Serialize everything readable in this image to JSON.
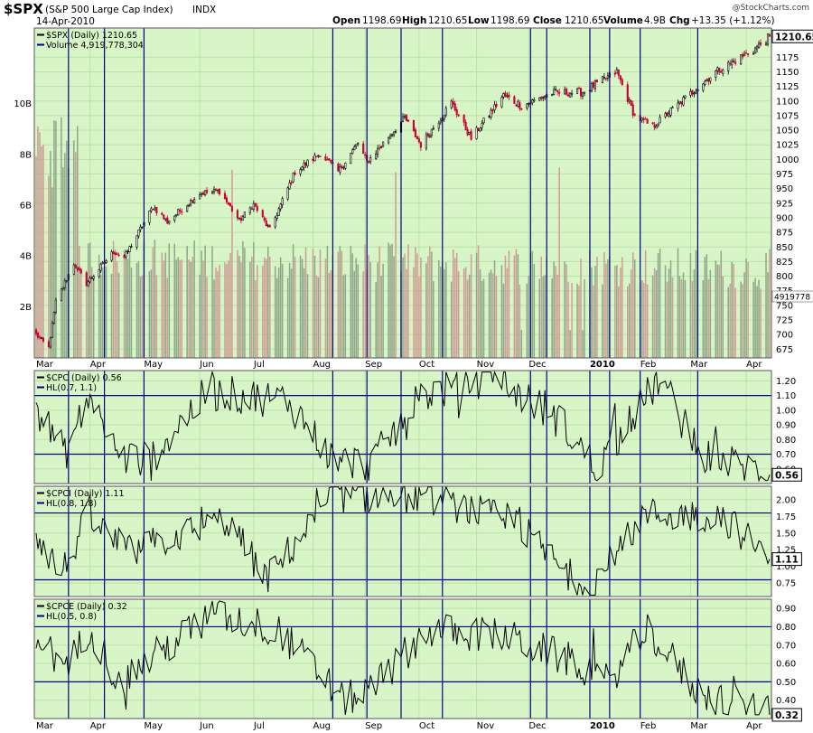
{
  "header": {
    "symbol": "$SPX",
    "description": "(S&P 500 Large Cap Index)",
    "exchange": "INDX",
    "date": "14-Apr-2010",
    "watermark": "@StockCharts.com",
    "quote": {
      "open_label": "Open",
      "open": "1198.69",
      "high_label": "High",
      "high": "1210.65",
      "low_label": "Low",
      "low": "1198.69",
      "close_label": "Close",
      "close": "1210.65",
      "volume_label": "Volume",
      "volume": "4.9B",
      "chg_label": "Chg",
      "chg": "+13.35 (+1.12%)"
    }
  },
  "colors": {
    "panel_bg": "#d8f5c8",
    "grid": "#b9e3a5",
    "vline": "#00008b",
    "candle_up": "#000000",
    "candle_down": "#cc0033",
    "vol_up": "#8fa889",
    "vol_down": "#cf9e96",
    "line": "#000000",
    "hline": "#00008b"
  },
  "chart_data": [
    {
      "type": "candlestick",
      "name": "$SPX (Daily) 1210.65",
      "legend": [
        "$SPX (Daily) 1210.65",
        "Volume 4,919,778,304"
      ],
      "last_value_label": "1210.65",
      "volume_last_label": "4919778",
      "x_months": [
        "Mar",
        "Apr",
        "May",
        "Jun",
        "Jul",
        "Aug",
        "Sep",
        "Oct",
        "Nov",
        "Dec",
        "2010",
        "Feb",
        "Mar",
        "Apr"
      ],
      "y_ticks": [
        675,
        700,
        725,
        750,
        775,
        800,
        825,
        850,
        875,
        900,
        925,
        950,
        975,
        1000,
        1025,
        1050,
        1075,
        1100,
        1125,
        1150,
        1175
      ],
      "ylim": [
        660,
        1225
      ],
      "volume_ticks": [
        "2B",
        "4B",
        "6B",
        "8B",
        "10B"
      ],
      "volume_ylim": [
        0,
        13
      ],
      "close_keypoints": [
        {
          "x": "2009-03-02",
          "y": 700
        },
        {
          "x": "2009-03-09",
          "y": 677
        },
        {
          "x": "2009-03-13",
          "y": 756
        },
        {
          "x": "2009-03-23",
          "y": 822
        },
        {
          "x": "2009-03-30",
          "y": 787
        },
        {
          "x": "2009-04-14",
          "y": 842
        },
        {
          "x": "2009-04-20",
          "y": 832
        },
        {
          "x": "2009-05-06",
          "y": 919
        },
        {
          "x": "2009-05-14",
          "y": 893
        },
        {
          "x": "2009-06-01",
          "y": 942
        },
        {
          "x": "2009-06-12",
          "y": 946
        },
        {
          "x": "2009-06-23",
          "y": 895
        },
        {
          "x": "2009-07-01",
          "y": 923
        },
        {
          "x": "2009-07-10",
          "y": 879
        },
        {
          "x": "2009-07-24",
          "y": 979
        },
        {
          "x": "2009-08-07",
          "y": 1010
        },
        {
          "x": "2009-08-17",
          "y": 979
        },
        {
          "x": "2009-08-28",
          "y": 1028
        },
        {
          "x": "2009-09-02",
          "y": 995
        },
        {
          "x": "2009-09-23",
          "y": 1071
        },
        {
          "x": "2009-10-02",
          "y": 1025
        },
        {
          "x": "2009-10-19",
          "y": 1097
        },
        {
          "x": "2009-10-30",
          "y": 1036
        },
        {
          "x": "2009-11-17",
          "y": 1110
        },
        {
          "x": "2009-11-27",
          "y": 1091
        },
        {
          "x": "2009-12-14",
          "y": 1114
        },
        {
          "x": "2009-12-31",
          "y": 1115
        },
        {
          "x": "2010-01-19",
          "y": 1150
        },
        {
          "x": "2010-01-29",
          "y": 1074
        },
        {
          "x": "2010-02-08",
          "y": 1056
        },
        {
          "x": "2010-02-25",
          "y": 1102
        },
        {
          "x": "2010-03-15",
          "y": 1150
        },
        {
          "x": "2010-04-05",
          "y": 1187
        },
        {
          "x": "2010-04-14",
          "y": 1210.65
        }
      ]
    },
    {
      "type": "line",
      "name": "$CPC (Daily) 0.56",
      "legend": [
        "$CPC (Daily) 0.56",
        "HL(0.7, 1.1)"
      ],
      "last_value_label": "0.56",
      "hlines": [
        0.7,
        1.1
      ],
      "y_ticks": [
        "0.60",
        "0.70",
        "0.80",
        "0.90",
        "1.00",
        "1.10",
        "1.20"
      ],
      "ylim": [
        0.5,
        1.27
      ],
      "last_value": 0.56,
      "keypoints": [
        {
          "x": "2009-03-02",
          "y": 1.02
        },
        {
          "x": "2009-03-18",
          "y": 0.7
        },
        {
          "x": "2009-04-01",
          "y": 1.1
        },
        {
          "x": "2009-04-17",
          "y": 0.68
        },
        {
          "x": "2009-05-04",
          "y": 0.66
        },
        {
          "x": "2009-06-05",
          "y": 1.12
        },
        {
          "x": "2009-07-20",
          "y": 1.07
        },
        {
          "x": "2009-08-14",
          "y": 0.66
        },
        {
          "x": "2009-09-04",
          "y": 0.63
        },
        {
          "x": "2009-10-02",
          "y": 1.1
        },
        {
          "x": "2009-11-11",
          "y": 1.23
        },
        {
          "x": "2009-12-18",
          "y": 0.93
        },
        {
          "x": "2010-01-08",
          "y": 0.6
        },
        {
          "x": "2010-02-05",
          "y": 1.1
        },
        {
          "x": "2010-02-12",
          "y": 1.22
        },
        {
          "x": "2010-03-05",
          "y": 0.71
        },
        {
          "x": "2010-04-14",
          "y": 0.56
        }
      ]
    },
    {
      "type": "line",
      "name": "$CPCI (Daily) 1.11",
      "legend": [
        "$CPCI (Daily) 1.11",
        "HL(0.8, 1.8)"
      ],
      "last_value_label": "1.11",
      "hlines": [
        0.8,
        1.8
      ],
      "y_ticks": [
        "0.75",
        "1.00",
        "1.25",
        "1.50",
        "1.75",
        "2.00"
      ],
      "ylim": [
        0.55,
        2.2
      ],
      "last_value": 1.11,
      "keypoints": [
        {
          "x": "2009-03-02",
          "y": 1.5
        },
        {
          "x": "2009-03-16",
          "y": 0.88
        },
        {
          "x": "2009-03-31",
          "y": 1.75
        },
        {
          "x": "2009-04-21",
          "y": 1.2
        },
        {
          "x": "2009-06-16",
          "y": 1.7
        },
        {
          "x": "2009-07-08",
          "y": 0.8
        },
        {
          "x": "2009-08-14",
          "y": 2.05
        },
        {
          "x": "2009-10-06",
          "y": 2.03
        },
        {
          "x": "2009-11-24",
          "y": 1.65
        },
        {
          "x": "2009-12-22",
          "y": 0.9
        },
        {
          "x": "2010-01-06",
          "y": 0.65
        },
        {
          "x": "2010-02-03",
          "y": 1.78
        },
        {
          "x": "2010-03-19",
          "y": 1.75
        },
        {
          "x": "2010-04-14",
          "y": 1.11
        }
      ]
    },
    {
      "type": "line",
      "name": "$CPCE (Daily) 0.32",
      "legend": [
        "$CPCE (Daily) 0.32",
        "HL(0.5, 0.8)"
      ],
      "last_value_label": "0.32",
      "hlines": [
        0.5,
        0.8
      ],
      "y_ticks": [
        "0.40",
        "0.50",
        "0.60",
        "0.70",
        "0.80",
        "0.90"
      ],
      "ylim": [
        0.3,
        0.95
      ],
      "last_value": 0.32,
      "keypoints": [
        {
          "x": "2009-03-02",
          "y": 0.78
        },
        {
          "x": "2009-03-18",
          "y": 0.55
        },
        {
          "x": "2009-04-01",
          "y": 0.8
        },
        {
          "x": "2009-04-17",
          "y": 0.5
        },
        {
          "x": "2009-06-08",
          "y": 0.87
        },
        {
          "x": "2009-07-15",
          "y": 0.78
        },
        {
          "x": "2009-08-20",
          "y": 0.4
        },
        {
          "x": "2009-09-04",
          "y": 0.45
        },
        {
          "x": "2009-10-05",
          "y": 0.78
        },
        {
          "x": "2009-11-18",
          "y": 0.75
        },
        {
          "x": "2009-12-28",
          "y": 0.6
        },
        {
          "x": "2010-01-14",
          "y": 0.5
        },
        {
          "x": "2010-02-05",
          "y": 0.79
        },
        {
          "x": "2010-03-05",
          "y": 0.45
        },
        {
          "x": "2010-04-14",
          "y": 0.32
        }
      ]
    }
  ]
}
